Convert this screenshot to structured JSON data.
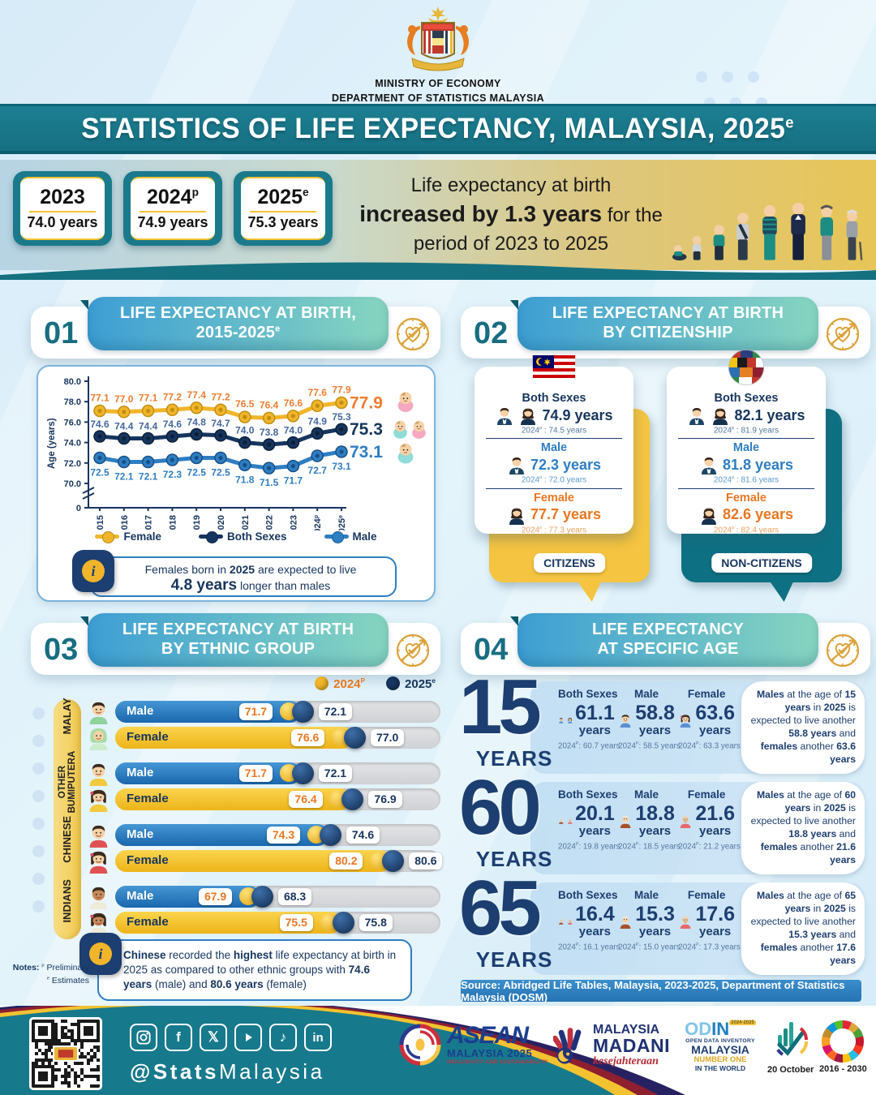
{
  "header": {
    "ministry": "MINISTRY OF ECONOMY",
    "department": "DEPARTMENT OF STATISTICS MALAYSIA",
    "title": "STATISTICS OF LIFE EXPECTANCY, MALAYSIA, 2025",
    "title_sup": "e"
  },
  "summary": {
    "boxes": [
      {
        "year": "2023",
        "sup": "",
        "value": "74.0 years"
      },
      {
        "year": "2024",
        "sup": "p",
        "value": "74.9 years"
      },
      {
        "year": "2025",
        "sup": "e",
        "value": "75.3 years"
      }
    ],
    "headline_l1": [
      [
        "Life expectancy at birth",
        0
      ]
    ],
    "headline_l2": [
      [
        "increased by 1.3 years",
        1
      ],
      [
        " for the",
        0
      ]
    ],
    "headline_l3": [
      [
        "period of 2023 to 2025",
        0
      ]
    ]
  },
  "sections": {
    "s1": {
      "num": "01",
      "t1": "LIFE EXPECTANCY AT BIRTH,",
      "t2": "2015-2025",
      "t2_sup": "e"
    },
    "s2": {
      "num": "02",
      "t1": "LIFE EXPECTANCY AT BIRTH",
      "t2": "BY CITIZENSHIP",
      "t2_sup": ""
    },
    "s3": {
      "num": "03",
      "t1": "LIFE EXPECTANCY AT BIRTH",
      "t2": "BY ETHNIC GROUP",
      "t2_sup": ""
    },
    "s4": {
      "num": "04",
      "t1": "LIFE EXPECTANCY",
      "t2": "AT SPECIFIC AGE",
      "t2_sup": ""
    }
  },
  "chart_data": [
    {
      "type": "line",
      "title": "Life Expectancy at Birth, 2015-2025e",
      "ylabel": "Age (years)",
      "ylim": [
        70,
        80
      ],
      "grid": false,
      "legend_pos": "bottom",
      "x": [
        "2015",
        "2016",
        "2017",
        "2018",
        "2019",
        "2020",
        "2021",
        "2022",
        "2023",
        "2024",
        "2025"
      ],
      "x_sups": [
        "",
        "",
        "",
        "",
        "",
        "",
        "",
        "",
        "",
        "p",
        "e"
      ],
      "yticks": [
        "80.0",
        "78.0",
        "76.0",
        "74.0",
        "72.0",
        "70.0",
        "0"
      ],
      "series": [
        {
          "name": "Female",
          "color": "#f0b52a",
          "core": "#c18e12",
          "label_color": "#ed7d31",
          "values": [
            77.1,
            77.0,
            77.1,
            77.2,
            77.4,
            77.2,
            76.5,
            76.4,
            76.6,
            77.6,
            77.9
          ],
          "end_label": "77.9"
        },
        {
          "name": "Both Sexes",
          "color": "#16355f",
          "core": "#0c2037",
          "label_color": "#44689d",
          "end_color": "#16355f",
          "values": [
            74.6,
            74.4,
            74.4,
            74.6,
            74.8,
            74.7,
            74.0,
            73.8,
            74.0,
            74.9,
            75.3
          ],
          "end_label": "75.3"
        },
        {
          "name": "Male",
          "color": "#2e7ec2",
          "core": "#174f85",
          "label_color": "#2e7ec2",
          "values": [
            72.5,
            72.1,
            72.1,
            72.3,
            72.5,
            72.5,
            71.8,
            71.5,
            71.7,
            72.7,
            73.1
          ],
          "end_label": "73.1"
        }
      ]
    },
    {
      "type": "bar",
      "title": "Life Expectancy at Birth by Ethnic Group",
      "legend": [
        {
          "label": "2024",
          "sup": "P",
          "color": "#f0b52a"
        },
        {
          "label": "2025",
          "sup": "e",
          "color": "#16355f"
        }
      ],
      "groups": [
        {
          "group": "MALAY",
          "rows": [
            {
              "sex": "Male",
              "v2024": "71.7",
              "v2025": "72.1"
            },
            {
              "sex": "Female",
              "v2024": "76.6",
              "v2025": "77.0"
            }
          ]
        },
        {
          "group": "OTHER BUMIPUTERA",
          "rows": [
            {
              "sex": "Male",
              "v2024": "71.7",
              "v2025": "72.1"
            },
            {
              "sex": "Female",
              "v2024": "76.4",
              "v2025": "76.9"
            }
          ]
        },
        {
          "group": "CHINESE",
          "rows": [
            {
              "sex": "Male",
              "v2024": "74.3",
              "v2025": "74.6"
            },
            {
              "sex": "Female",
              "v2024": "80.2",
              "v2025": "80.6"
            }
          ]
        },
        {
          "group": "INDIANS",
          "rows": [
            {
              "sex": "Male",
              "v2024": "67.9",
              "v2025": "68.3"
            },
            {
              "sex": "Female",
              "v2024": "75.5",
              "v2025": "75.8"
            }
          ]
        }
      ]
    }
  ],
  "note1": {
    "l1": [
      [
        "Females born in ",
        0
      ],
      [
        "2025",
        1
      ],
      [
        " are expected to live",
        0
      ]
    ],
    "l2": [
      [
        "4.8 years",
        1
      ],
      [
        " longer than males",
        0
      ]
    ]
  },
  "citizenship": {
    "cards": [
      {
        "tag": "CITIZENS",
        "rows": [
          {
            "label": "Both Sexes",
            "value": "74.9 years",
            "py": "2024",
            "ps": "p",
            "pr": " : 74.5 years"
          },
          {
            "label": "Male",
            "value": "72.3 years",
            "py": "2024",
            "ps": "p",
            "pr": " : 72.0 years"
          },
          {
            "label": "Female",
            "value": "77.7 years",
            "py": "2024",
            "ps": "p",
            "pr": " : 77.3 years"
          }
        ]
      },
      {
        "tag": "NON-CITIZENS",
        "rows": [
          {
            "label": "Both Sexes",
            "value": "82.1 years",
            "py": "2024",
            "ps": "p",
            "pr": " : 81.9 years"
          },
          {
            "label": "Male",
            "value": "81.8 years",
            "py": "2024",
            "ps": "p",
            "pr": " : 81.6 years"
          },
          {
            "label": "Female",
            "value": "82.6 years",
            "py": "2024",
            "ps": "p",
            "pr": " : 82.4 years"
          }
        ]
      }
    ]
  },
  "note3": [
    [
      "Chinese",
      1
    ],
    [
      " recorded the ",
      0
    ],
    [
      "highest",
      1
    ],
    [
      " life expectancy at birth in 2025 as compared to other ethnic groups with ",
      0
    ],
    [
      "74.6 years",
      1
    ],
    [
      " (male) and ",
      0
    ],
    [
      "80.6 years",
      1
    ],
    [
      " (female)",
      0
    ]
  ],
  "notes": {
    "label": "Notes:",
    "p_sup": "p",
    "p_text": "Preliminary",
    "e_sup": "e",
    "e_text": "Estimates"
  },
  "specific_age": {
    "blocks": [
      {
        "age": "15",
        "unit": "YEARS",
        "cols": [
          {
            "label": "Both Sexes",
            "value": "61.1",
            "unit": "years",
            "py": "2024",
            "ps": "P",
            "pr": ": 60.7 years"
          },
          {
            "label": "Male",
            "value": "58.8",
            "unit": "years",
            "py": "2024",
            "ps": "P",
            "pr": ": 58.5 years"
          },
          {
            "label": "Female",
            "value": "63.6",
            "unit": "years",
            "py": "2024",
            "ps": "P",
            "pr": ": 63.3 years"
          }
        ],
        "note": [
          [
            "Males",
            1
          ],
          [
            " at the age of ",
            0
          ],
          [
            "15 years",
            1
          ],
          [
            " in ",
            0
          ],
          [
            "2025",
            1
          ],
          [
            " is expected to live another ",
            0
          ],
          [
            "58.8 years",
            1
          ],
          [
            " and ",
            0
          ],
          [
            "females",
            1
          ],
          [
            " another ",
            0
          ],
          [
            "63.6 years",
            1
          ]
        ]
      },
      {
        "age": "60",
        "unit": "YEARS",
        "cols": [
          {
            "label": "Both Sexes",
            "value": "20.1",
            "unit": "years",
            "py": "2024",
            "ps": "P",
            "pr": ": 19.8 years"
          },
          {
            "label": "Male",
            "value": "18.8",
            "unit": "years",
            "py": "2024",
            "ps": "P",
            "pr": ": 18.5 years"
          },
          {
            "label": "Female",
            "value": "21.6",
            "unit": "years",
            "py": "2024",
            "ps": "P",
            "pr": ": 21.2 years"
          }
        ],
        "note": [
          [
            "Males",
            1
          ],
          [
            " at the age of ",
            0
          ],
          [
            "60 years",
            1
          ],
          [
            " in ",
            0
          ],
          [
            "2025",
            1
          ],
          [
            " is expected to live another ",
            0
          ],
          [
            "18.8 years",
            1
          ],
          [
            " and ",
            0
          ],
          [
            "females",
            1
          ],
          [
            " another ",
            0
          ],
          [
            "21.6 years",
            1
          ]
        ]
      },
      {
        "age": "65",
        "unit": "YEARS",
        "cols": [
          {
            "label": "Both Sexes",
            "value": "16.4",
            "unit": "years",
            "py": "2024",
            "ps": "P",
            "pr": ": 16.1 years"
          },
          {
            "label": "Male",
            "value": "15.3",
            "unit": "years",
            "py": "2024",
            "ps": "P",
            "pr": ": 15.0 years"
          },
          {
            "label": "Female",
            "value": "17.6",
            "unit": "years",
            "py": "2024",
            "ps": "P",
            "pr": ": 17.3 years"
          }
        ],
        "note": [
          [
            "Males",
            1
          ],
          [
            " at the age of ",
            0
          ],
          [
            "65 years",
            1
          ],
          [
            " in ",
            0
          ],
          [
            "2025",
            1
          ],
          [
            " is expected to live another ",
            0
          ],
          [
            "15.3 years",
            1
          ],
          [
            " and ",
            0
          ],
          [
            "females",
            1
          ],
          [
            " another ",
            0
          ],
          [
            "17.6 years",
            1
          ]
        ]
      }
    ]
  },
  "source": "Source: Abridged Life Tables, Malaysia, 2023-2025, Department of Statistics Malaysia (DOSM)",
  "footer": {
    "handle_bold": "@Stats",
    "handle_light": "Malaysia",
    "social": [
      "instagram",
      "facebook",
      "x",
      "youtube",
      "tiktok",
      "linkedin"
    ],
    "asean": {
      "l1": "ASEAN",
      "l2": "MALAYSIA 2025",
      "l3": "INCLUSIVITY AND SUSTAINABILITY"
    },
    "madani": {
      "l1": "MALAYSIA",
      "l2": "MADANI",
      "l3": "kesejahteraan"
    },
    "odin": {
      "l1": "OD",
      "l1b": "IN",
      "badge": "2024-2025",
      "l2": "OPEN DATA INVENTORY",
      "l3": "MALAYSIA",
      "l4": "NUMBER ONE",
      "l5": "IN THE WORLD"
    },
    "statsday": {
      "caption": "20 October"
    },
    "sdg": {
      "caption": "2016 - 2030"
    }
  }
}
